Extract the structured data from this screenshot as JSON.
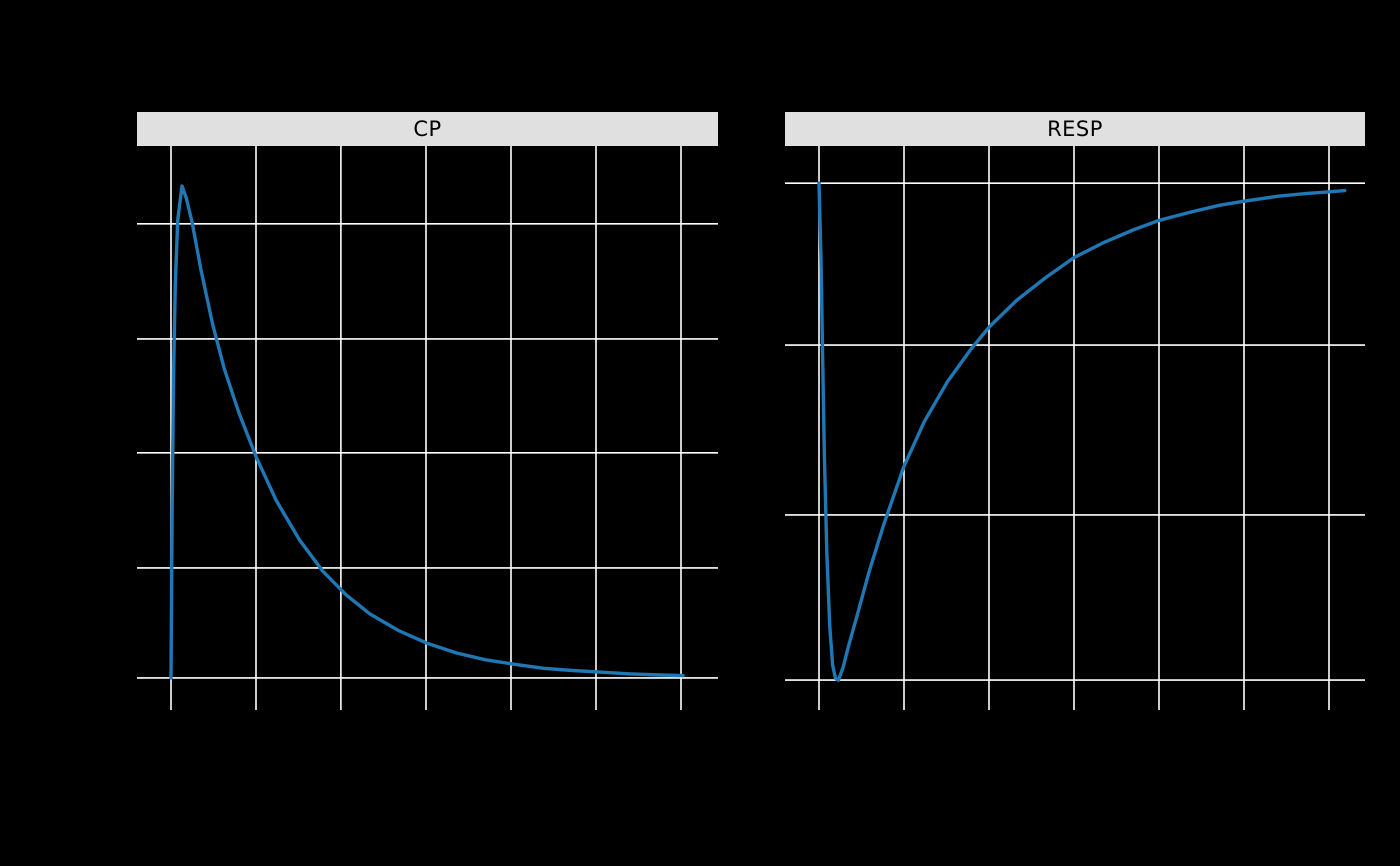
{
  "page": {
    "background": "#000000"
  },
  "strips": {
    "bg": "#e0e0e0",
    "text_color": "#000000"
  },
  "chart_data": [
    {
      "type": "line",
      "title": "CP",
      "xlabel": "",
      "ylabel": "",
      "grid": true,
      "grid_color": "#ffffff",
      "line_color": "#1f77b4",
      "legend": "none",
      "description": "Concentration-time style curve: rapid rise to an early sharp peak followed by exponential decline to a flat baseline at the lowest gridline.",
      "x_gridlines": [
        0.0585,
        0.2048,
        0.351,
        0.4974,
        0.6437,
        0.79,
        0.9364
      ],
      "y_gridlines": [
        0.138,
        0.342,
        0.544,
        0.748,
        0.943
      ],
      "points_format": "[x_fraction_across_panel, y_fraction_from_panel_top]",
      "points": [
        [
          0.0585,
          0.943
        ],
        [
          0.0605,
          0.638
        ],
        [
          0.063,
          0.402
        ],
        [
          0.066,
          0.245
        ],
        [
          0.07,
          0.132
        ],
        [
          0.0775,
          0.071
        ],
        [
          0.085,
          0.093
        ],
        [
          0.095,
          0.136
        ],
        [
          0.11,
          0.219
        ],
        [
          0.13,
          0.315
        ],
        [
          0.15,
          0.394
        ],
        [
          0.175,
          0.472
        ],
        [
          0.205,
          0.551
        ],
        [
          0.24,
          0.629
        ],
        [
          0.28,
          0.699
        ],
        [
          0.32,
          0.754
        ],
        [
          0.36,
          0.796
        ],
        [
          0.4,
          0.829
        ],
        [
          0.45,
          0.859
        ],
        [
          0.5,
          0.882
        ],
        [
          0.55,
          0.899
        ],
        [
          0.6,
          0.911
        ],
        [
          0.65,
          0.919
        ],
        [
          0.7,
          0.926
        ],
        [
          0.75,
          0.93
        ],
        [
          0.8,
          0.933
        ],
        [
          0.85,
          0.936
        ],
        [
          0.9,
          0.938
        ],
        [
          0.94,
          0.939
        ]
      ]
    },
    {
      "type": "line",
      "title": "RESP",
      "xlabel": "",
      "ylabel": "",
      "grid": true,
      "grid_color": "#ffffff",
      "line_color": "#1f77b4",
      "legend": "none",
      "description": "Indirect-response style curve: starts at top baseline, plunges steeply to a nadir at the bottom gridline, then recovers exponentially back toward the top baseline.",
      "x_gridlines": [
        0.0586,
        0.2052,
        0.3517,
        0.4983,
        0.6448,
        0.7914,
        0.9379
      ],
      "y_gridlines": [
        0.066,
        0.353,
        0.654,
        0.947
      ],
      "points_format": "[x_fraction_across_panel, y_fraction_from_panel_top]",
      "points": [
        [
          0.0586,
          0.066
        ],
        [
          0.062,
          0.2
        ],
        [
          0.065,
          0.38
        ],
        [
          0.068,
          0.55
        ],
        [
          0.072,
          0.72
        ],
        [
          0.077,
          0.85
        ],
        [
          0.082,
          0.92
        ],
        [
          0.087,
          0.944
        ],
        [
          0.092,
          0.947
        ],
        [
          0.1,
          0.925
        ],
        [
          0.11,
          0.885
        ],
        [
          0.125,
          0.83
        ],
        [
          0.145,
          0.755
        ],
        [
          0.17,
          0.672
        ],
        [
          0.205,
          0.568
        ],
        [
          0.24,
          0.489
        ],
        [
          0.28,
          0.418
        ],
        [
          0.32,
          0.361
        ],
        [
          0.352,
          0.321
        ],
        [
          0.4,
          0.273
        ],
        [
          0.45,
          0.233
        ],
        [
          0.498,
          0.198
        ],
        [
          0.55,
          0.171
        ],
        [
          0.6,
          0.149
        ],
        [
          0.645,
          0.132
        ],
        [
          0.7,
          0.117
        ],
        [
          0.75,
          0.105
        ],
        [
          0.79,
          0.098
        ],
        [
          0.85,
          0.089
        ],
        [
          0.9,
          0.084
        ],
        [
          0.93,
          0.082
        ],
        [
          0.965,
          0.079
        ]
      ]
    }
  ]
}
